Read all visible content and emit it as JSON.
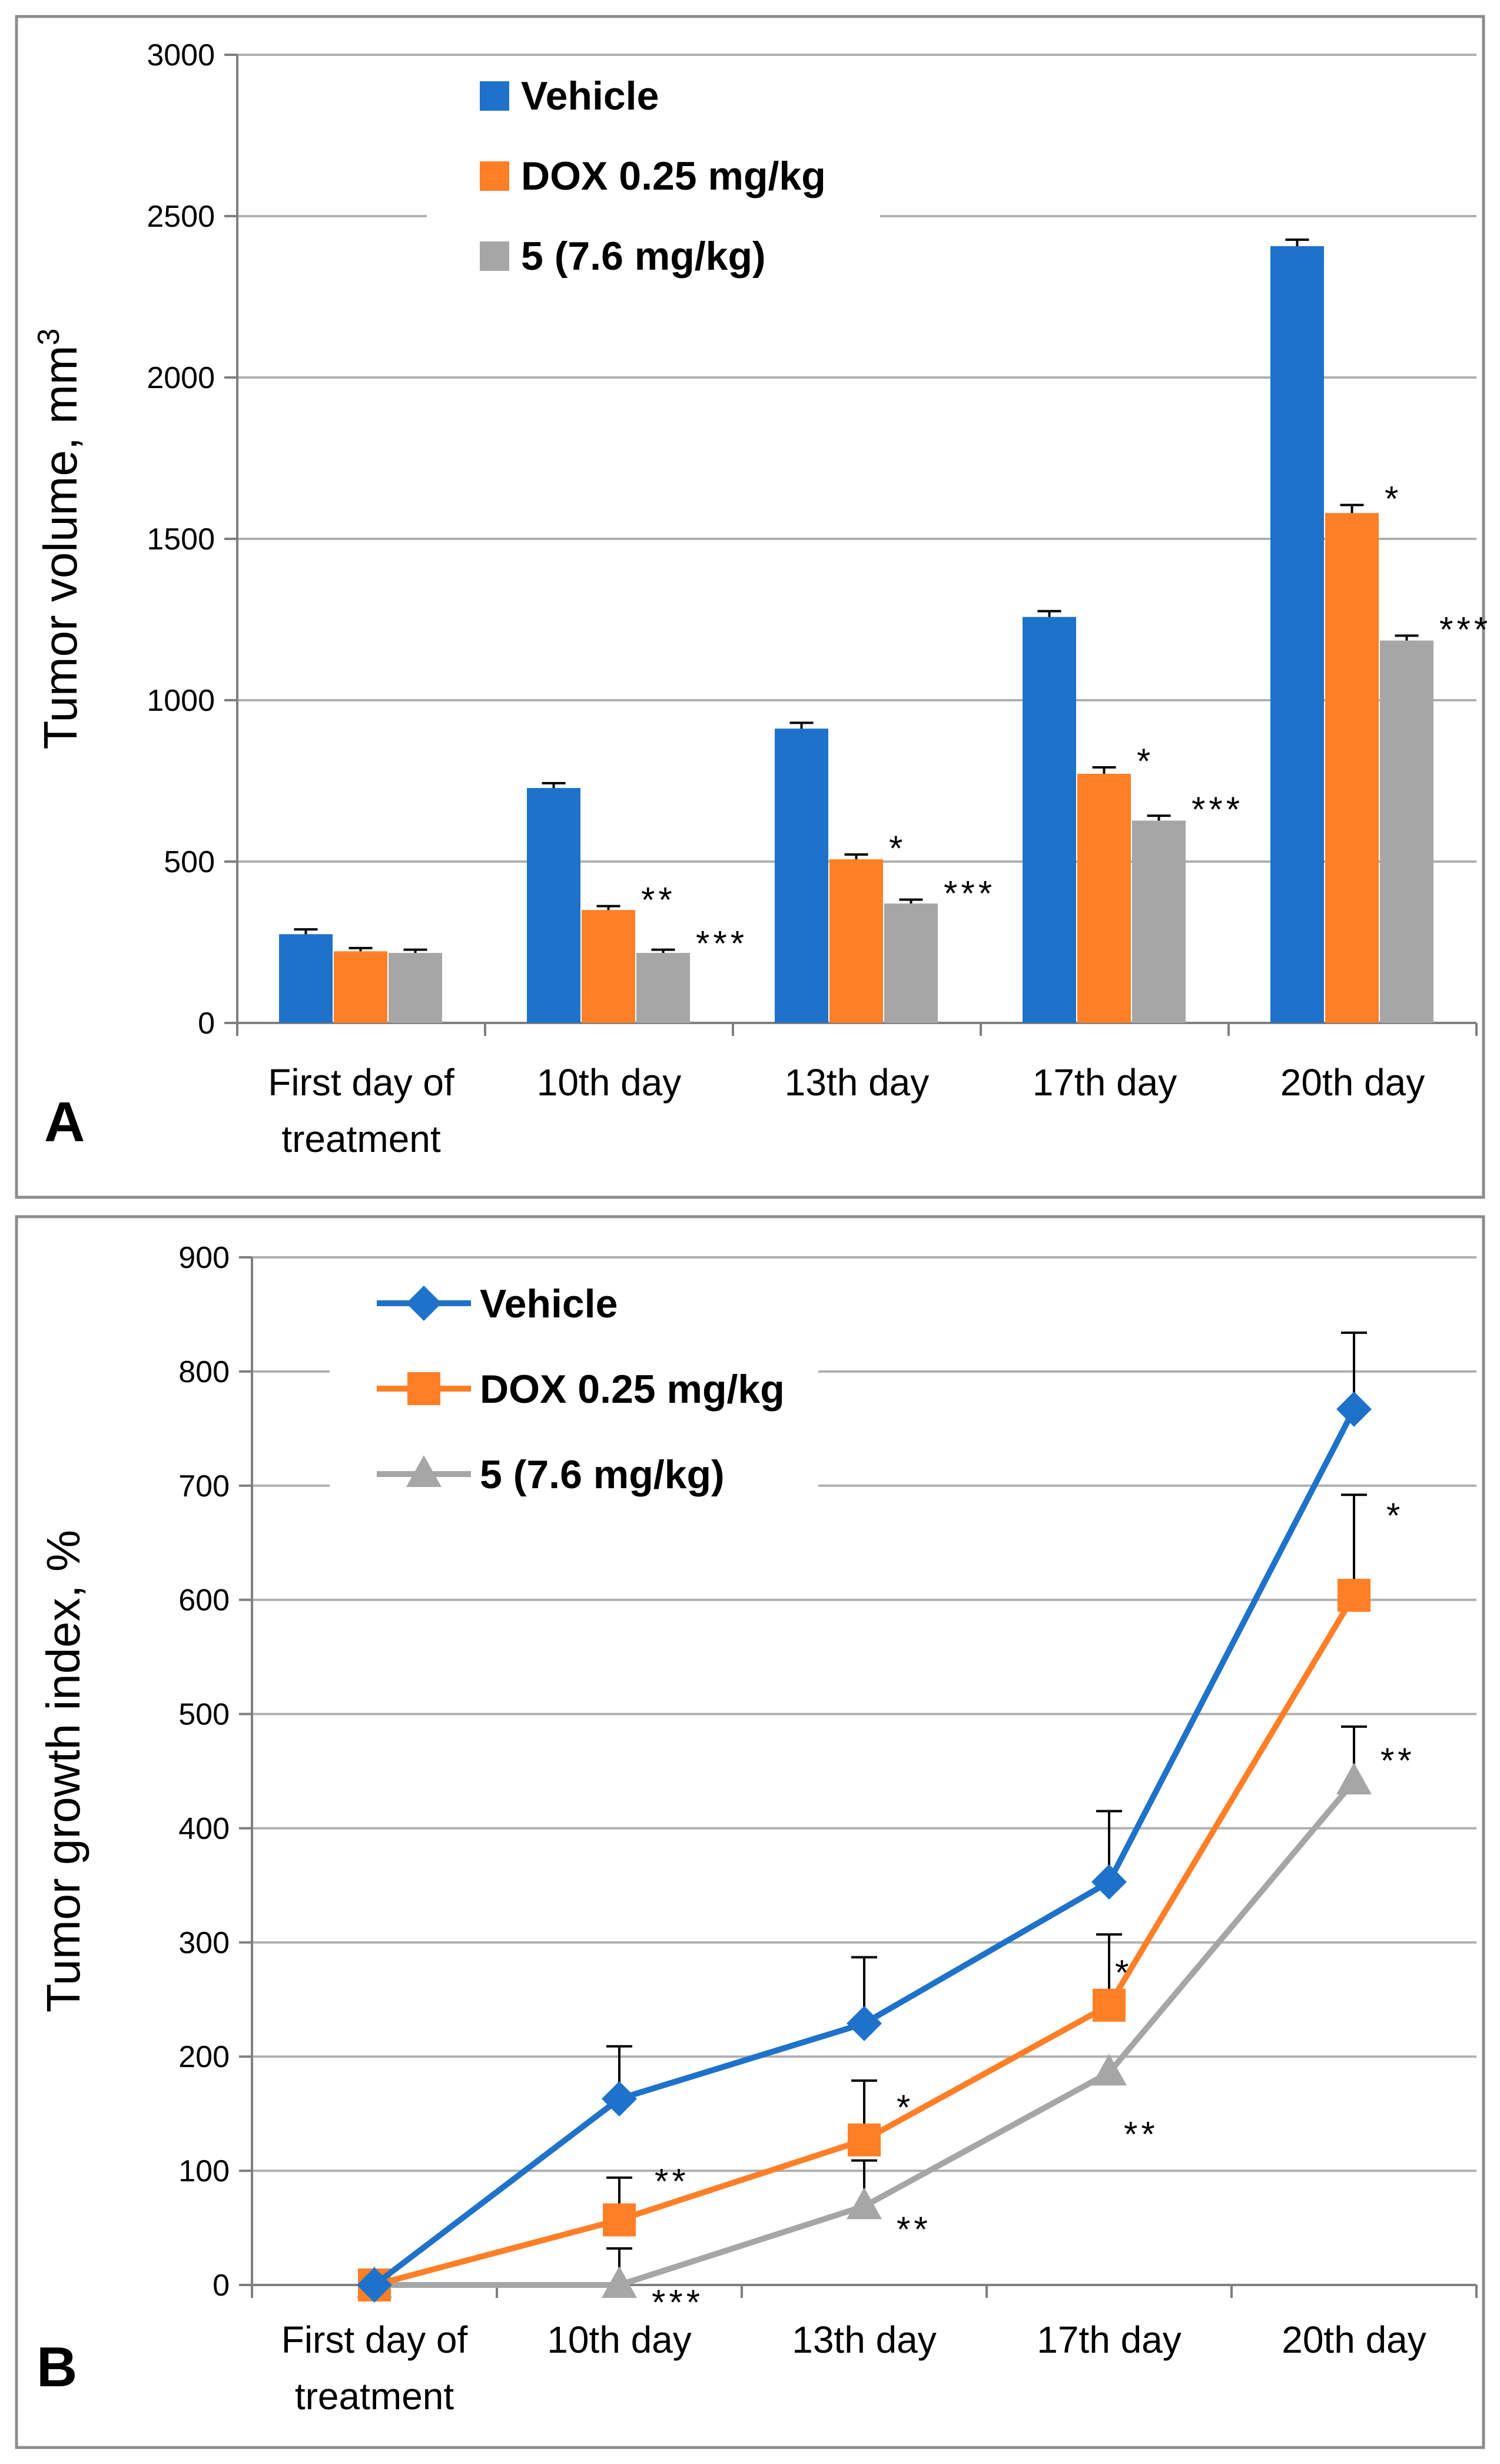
{
  "chart_data": [
    {
      "panel": "A",
      "type": "bar",
      "categories": [
        "First day of treatment",
        "10th day",
        "13th day",
        "17th day",
        "20th day"
      ],
      "category_lines": [
        [
          "First day of",
          "treatment"
        ],
        [
          "10th day"
        ],
        [
          "13th day"
        ],
        [
          "17th day"
        ],
        [
          "20th day"
        ]
      ],
      "ylabel": "Tumor volume, mm³",
      "ylim": [
        0,
        3000
      ],
      "yticks": [
        0,
        500,
        1000,
        1500,
        2000,
        2500,
        3000
      ],
      "grid": true,
      "legend_position": "top-left",
      "series": [
        {
          "name": "Vehicle",
          "color": "#1F72C9",
          "values": [
            275,
            728,
            912,
            1258,
            2407
          ],
          "errors": [
            15,
            15,
            18,
            18,
            20
          ],
          "significance": [
            "",
            "",
            "",
            "",
            ""
          ]
        },
        {
          "name": "DOX 0.25 mg/kg",
          "color": "#FF7F27",
          "values": [
            222,
            350,
            507,
            772,
            1580
          ],
          "errors": [
            10,
            12,
            15,
            20,
            25
          ],
          "significance": [
            "",
            "**",
            "*",
            "*",
            "*"
          ]
        },
        {
          "name": "5 (7.6 mg/kg)",
          "color": "#A6A6A6",
          "values": [
            217,
            217,
            370,
            627,
            1185
          ],
          "errors": [
            10,
            10,
            12,
            15,
            15
          ],
          "significance": [
            "",
            "***",
            "***",
            "***",
            "***"
          ]
        }
      ]
    },
    {
      "panel": "B",
      "type": "line",
      "categories": [
        "First day of treatment",
        "10th day",
        "13th day",
        "17th day",
        "20th day"
      ],
      "category_lines": [
        [
          "First day of",
          "treatment"
        ],
        [
          "10th day"
        ],
        [
          "13th day"
        ],
        [
          "17th day"
        ],
        [
          "20th day"
        ]
      ],
      "ylabel": "Tumor growth index, %",
      "ylim": [
        0,
        900
      ],
      "yticks": [
        0,
        100,
        200,
        300,
        400,
        500,
        600,
        700,
        800,
        900
      ],
      "grid": true,
      "legend_position": "top-left",
      "series": [
        {
          "name": "Vehicle",
          "color": "#1F72C9",
          "marker": "diamond",
          "values": [
            0,
            163,
            229,
            353,
            767
          ],
          "errors": [
            0,
            46,
            58,
            62,
            67
          ],
          "significance": [
            "",
            "",
            "",
            "",
            ""
          ]
        },
        {
          "name": "DOX 0.25 mg/kg",
          "color": "#FF7F27",
          "marker": "square",
          "values": [
            0,
            57,
            127,
            245,
            604
          ],
          "errors": [
            0,
            37,
            52,
            62,
            88
          ],
          "significance": [
            "",
            "**",
            "*",
            "*",
            "*"
          ]
        },
        {
          "name": "5 (7.6 mg/kg)",
          "color": "#A6A6A6",
          "marker": "triangle",
          "values": [
            0,
            0,
            69,
            186,
            441
          ],
          "errors": [
            0,
            32,
            40,
            0,
            48
          ],
          "significance": [
            "",
            "***",
            "**",
            "**",
            "**"
          ]
        }
      ]
    }
  ],
  "labels": {
    "panel_a": "A",
    "panel_b": "B"
  }
}
